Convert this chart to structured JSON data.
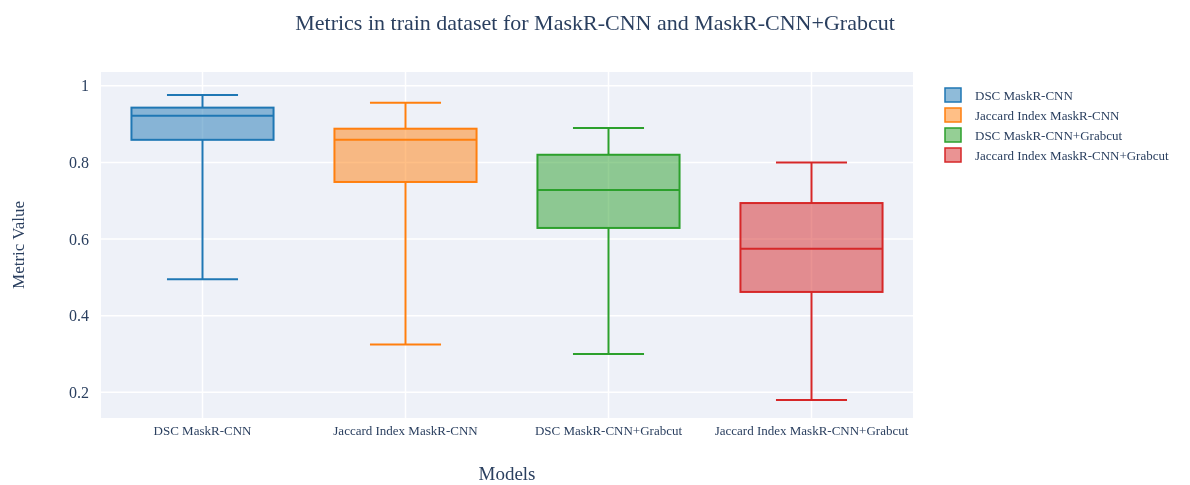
{
  "chart_data": {
    "type": "box",
    "title": "Metrics in train dataset for MaskR-CNN and MaskR-CNN+Grabcut",
    "xlabel": "Models",
    "ylabel": "Metric Value",
    "categories": [
      "DSC MaskR-CNN",
      "Jaccard Index MaskR-CNN",
      "DSC MaskR-CNN+Grabcut",
      "Jaccard Index MaskR-CNN+Grabcut"
    ],
    "series": [
      {
        "name": "DSC MaskR-CNN",
        "color": "#1f77b4",
        "x": [
          "DSC MaskR-CNN"
        ],
        "boxes": [
          {
            "low": 0.495,
            "q1": 0.859,
            "median": 0.922,
            "q3": 0.943,
            "high": 0.976
          }
        ]
      },
      {
        "name": "Jaccard Index MaskR-CNN",
        "color": "#ff7f0e",
        "x": [
          "Jaccard Index MaskR-CNN"
        ],
        "boxes": [
          {
            "low": 0.325,
            "q1": 0.749,
            "median": 0.859,
            "q3": 0.888,
            "high": 0.956
          }
        ]
      },
      {
        "name": "DSC MaskR-CNN+Grabcut",
        "color": "#2ca02c",
        "x": [
          "DSC MaskR-CNN+Grabcut"
        ],
        "boxes": [
          {
            "low": 0.3,
            "q1": 0.629,
            "median": 0.728,
            "q3": 0.82,
            "high": 0.89
          }
        ]
      },
      {
        "name": "Jaccard Index MaskR-CNN+Grabcut",
        "color": "#d62728",
        "x": [
          "Jaccard Index MaskR-CNN+Grabcut"
        ],
        "boxes": [
          {
            "low": 0.18,
            "q1": 0.462,
            "median": 0.575,
            "q3": 0.694,
            "high": 0.8
          }
        ]
      }
    ],
    "ylim": [
      0.133,
      1.036
    ],
    "yticks": [
      0.2,
      0.4,
      0.6,
      0.8,
      1
    ],
    "grid": true,
    "legend": "top right"
  }
}
